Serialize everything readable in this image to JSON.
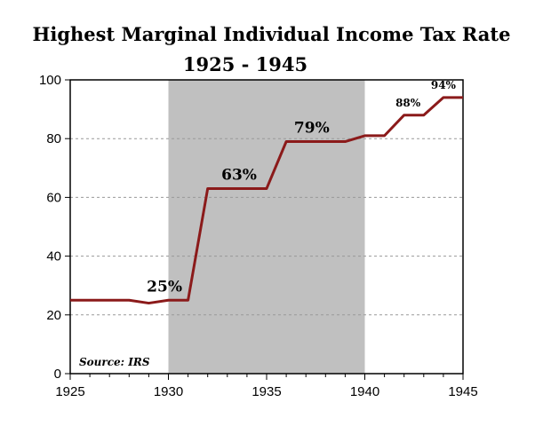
{
  "chart_data": {
    "type": "line",
    "title": "Highest Marginal Individual Income Tax Rate",
    "subtitle": "1925 - 1945",
    "x": [
      1925,
      1928,
      1929,
      1930,
      1931,
      1932,
      1935,
      1936,
      1939,
      1940,
      1941,
      1942,
      1943,
      1944,
      1945
    ],
    "series": [
      {
        "values": [
          25,
          25,
          24,
          25,
          25,
          63,
          63,
          79,
          79,
          81,
          81,
          88,
          88,
          94,
          94
        ]
      }
    ],
    "xlim": [
      1925,
      1945
    ],
    "ylim": [
      0,
      100
    ],
    "x_ticks": [
      "1925",
      "1930",
      "1935",
      "1940",
      "1945"
    ],
    "y_ticks": [
      "0",
      "20",
      "40",
      "60",
      "80",
      "100"
    ],
    "shaded_region": [
      1930,
      1940
    ],
    "grid": true,
    "annotations": [
      {
        "text": "25%",
        "x": 1929.8,
        "y": 28
      },
      {
        "text": "63%",
        "x": 1933.6,
        "y": 66
      },
      {
        "text": "79%",
        "x": 1937.3,
        "y": 82
      },
      {
        "text": "88%",
        "x": 1942.2,
        "y": 91
      },
      {
        "text": "94%",
        "x": 1944.0,
        "y": 97
      }
    ],
    "source": "Source: IRS",
    "colors": {
      "line": "#8b1a1a",
      "shade": "#c0c0c0",
      "grid": "#999999"
    }
  }
}
